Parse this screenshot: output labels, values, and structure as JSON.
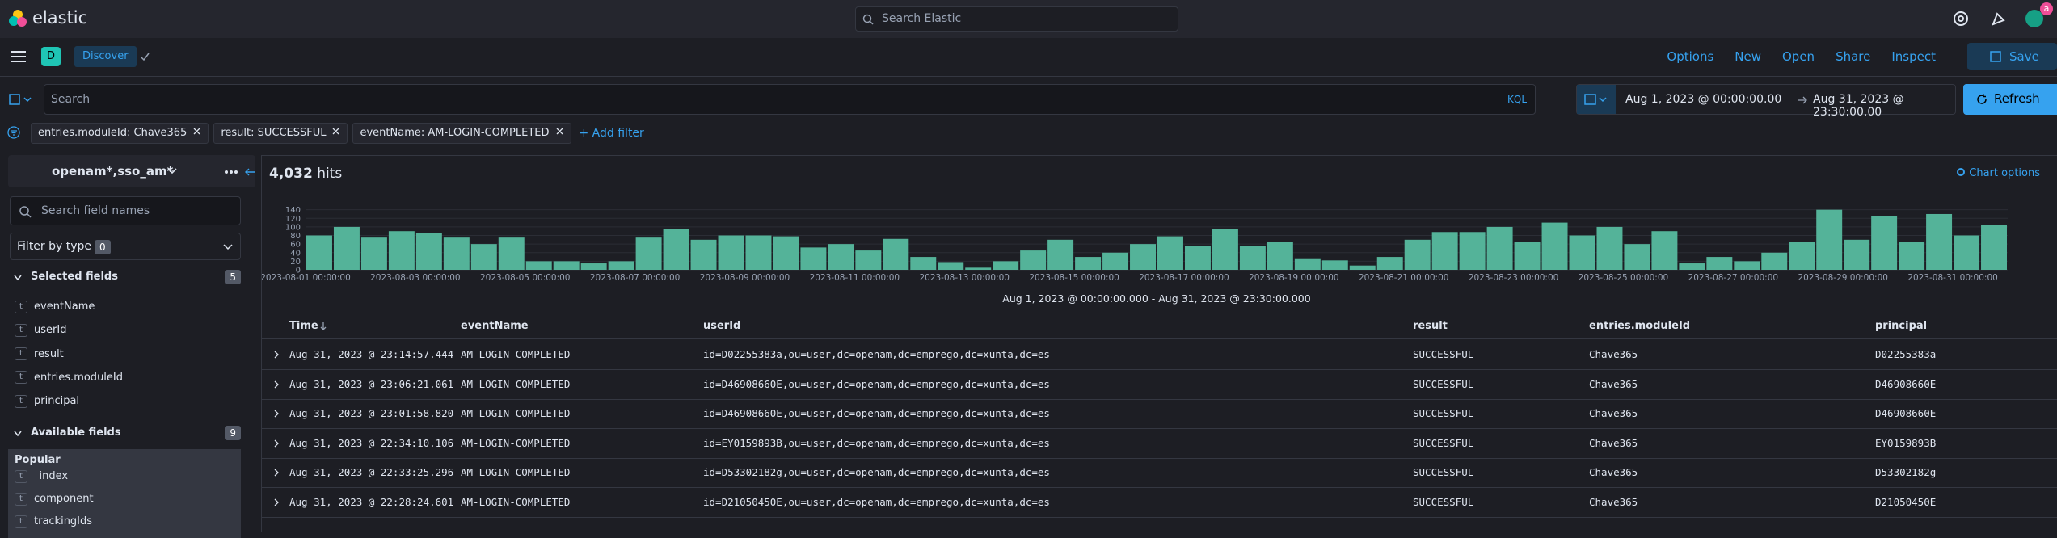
{
  "header": {
    "brand": "elastic",
    "search_placeholder": "Search Elastic",
    "avatar": "a"
  },
  "nav": {
    "space": "D",
    "breadcrumb": "Discover",
    "links": [
      "Options",
      "New",
      "Open",
      "Share",
      "Inspect"
    ],
    "save": "Save"
  },
  "query": {
    "placeholder": "Search",
    "language": "KQL",
    "date_start": "Aug 1, 2023 @ 00:00:00.00",
    "date_end": "Aug 31, 2023 @ 23:30:00.00",
    "refresh": "Refresh"
  },
  "filters": {
    "pills": [
      "entries.moduleId: Chave365",
      "result: SUCCESSFUL",
      "eventName: AM-LOGIN-COMPLETED"
    ],
    "add": "+ Add filter"
  },
  "sidebar": {
    "index_pattern": "openam*,sso_am*",
    "search_placeholder": "Search field names",
    "filter_by_type": "Filter by type",
    "filter_count": 0,
    "selected_title": "Selected fields",
    "selected_count": 5,
    "selected": [
      {
        "type": "t",
        "name": "eventName"
      },
      {
        "type": "t",
        "name": "userId"
      },
      {
        "type": "t",
        "name": "result"
      },
      {
        "type": "t",
        "name": "entries.moduleId"
      },
      {
        "type": "t",
        "name": "principal"
      }
    ],
    "available_title": "Available fields",
    "available_count": 9,
    "popular_title": "Popular",
    "popular": [
      {
        "type": "t",
        "name": "_index"
      },
      {
        "type": "t",
        "name": "component"
      },
      {
        "type": "t",
        "name": "trackingIds"
      }
    ]
  },
  "hits": {
    "count": "4,032",
    "label": "hits"
  },
  "chart_options": "Chart options",
  "chart_data": {
    "type": "bar",
    "color": "#54b399",
    "grid": true,
    "xlabel": "Aug 1, 2023 @ 00:00:00.000 - Aug 31, 2023 @ 23:30:00.000",
    "categories": [
      "2023-08-01 00:00:00",
      null,
      null,
      null,
      "2023-08-03 00:00:00",
      null,
      null,
      null,
      "2023-08-05 00:00:00",
      null,
      null,
      null,
      "2023-08-07 00:00:00",
      null,
      null,
      null,
      "2023-08-09 00:00:00",
      null,
      null,
      null,
      "2023-08-11 00:00:00",
      null,
      null,
      null,
      "2023-08-13 00:00:00",
      null,
      null,
      null,
      "2023-08-15 00:00:00",
      null,
      null,
      null,
      "2023-08-17 00:00:00",
      null,
      null,
      null,
      "2023-08-19 00:00:00",
      null,
      null,
      null,
      "2023-08-21 00:00:00",
      null,
      null,
      null,
      "2023-08-23 00:00:00",
      null,
      null,
      null,
      "2023-08-25 00:00:00",
      null,
      null,
      null,
      "2023-08-27 00:00:00",
      null,
      null,
      null,
      "2023-08-29 00:00:00",
      null,
      null,
      null,
      "2023-08-31 00:00:00",
      null
    ],
    "values": [
      80,
      100,
      75,
      90,
      85,
      75,
      60,
      75,
      20,
      20,
      15,
      20,
      75,
      95,
      70,
      80,
      80,
      78,
      52,
      60,
      45,
      72,
      30,
      18,
      5,
      20,
      45,
      70,
      30,
      40,
      60,
      78,
      55,
      95,
      55,
      65,
      25,
      22,
      10,
      30,
      70,
      88,
      88,
      100,
      65,
      110,
      80,
      100,
      60,
      90,
      15,
      30,
      20,
      40,
      65,
      140,
      70,
      125,
      65,
      130,
      80,
      105
    ],
    "ylim": [
      0,
      145
    ],
    "yticks": [
      0,
      20,
      40,
      60,
      80,
      100,
      120,
      140
    ]
  },
  "table": {
    "columns": [
      "Time",
      "eventName",
      "userId",
      "result",
      "entries.moduleId",
      "principal"
    ],
    "rows": [
      [
        "Aug 31, 2023 @ 23:14:57.444",
        "AM-LOGIN-COMPLETED",
        "id=D02255383a,ou=user,dc=openam,dc=emprego,dc=xunta,dc=es",
        "SUCCESSFUL",
        "Chave365",
        "D02255383a"
      ],
      [
        "Aug 31, 2023 @ 23:06:21.061",
        "AM-LOGIN-COMPLETED",
        "id=D46908660E,ou=user,dc=openam,dc=emprego,dc=xunta,dc=es",
        "SUCCESSFUL",
        "Chave365",
        "D46908660E"
      ],
      [
        "Aug 31, 2023 @ 23:01:58.820",
        "AM-LOGIN-COMPLETED",
        "id=D46908660E,ou=user,dc=openam,dc=emprego,dc=xunta,dc=es",
        "SUCCESSFUL",
        "Chave365",
        "D46908660E"
      ],
      [
        "Aug 31, 2023 @ 22:34:10.106",
        "AM-LOGIN-COMPLETED",
        "id=EY0159893B,ou=user,dc=openam,dc=emprego,dc=xunta,dc=es",
        "SUCCESSFUL",
        "Chave365",
        "EY0159893B"
      ],
      [
        "Aug 31, 2023 @ 22:33:25.296",
        "AM-LOGIN-COMPLETED",
        "id=D53302182g,ou=user,dc=openam,dc=emprego,dc=xunta,dc=es",
        "SUCCESSFUL",
        "Chave365",
        "D53302182g"
      ],
      [
        "Aug 31, 2023 @ 22:28:24.601",
        "AM-LOGIN-COMPLETED",
        "id=D21050450E,ou=user,dc=openam,dc=emprego,dc=xunta,dc=es",
        "SUCCESSFUL",
        "Chave365",
        "D21050450E"
      ]
    ]
  }
}
